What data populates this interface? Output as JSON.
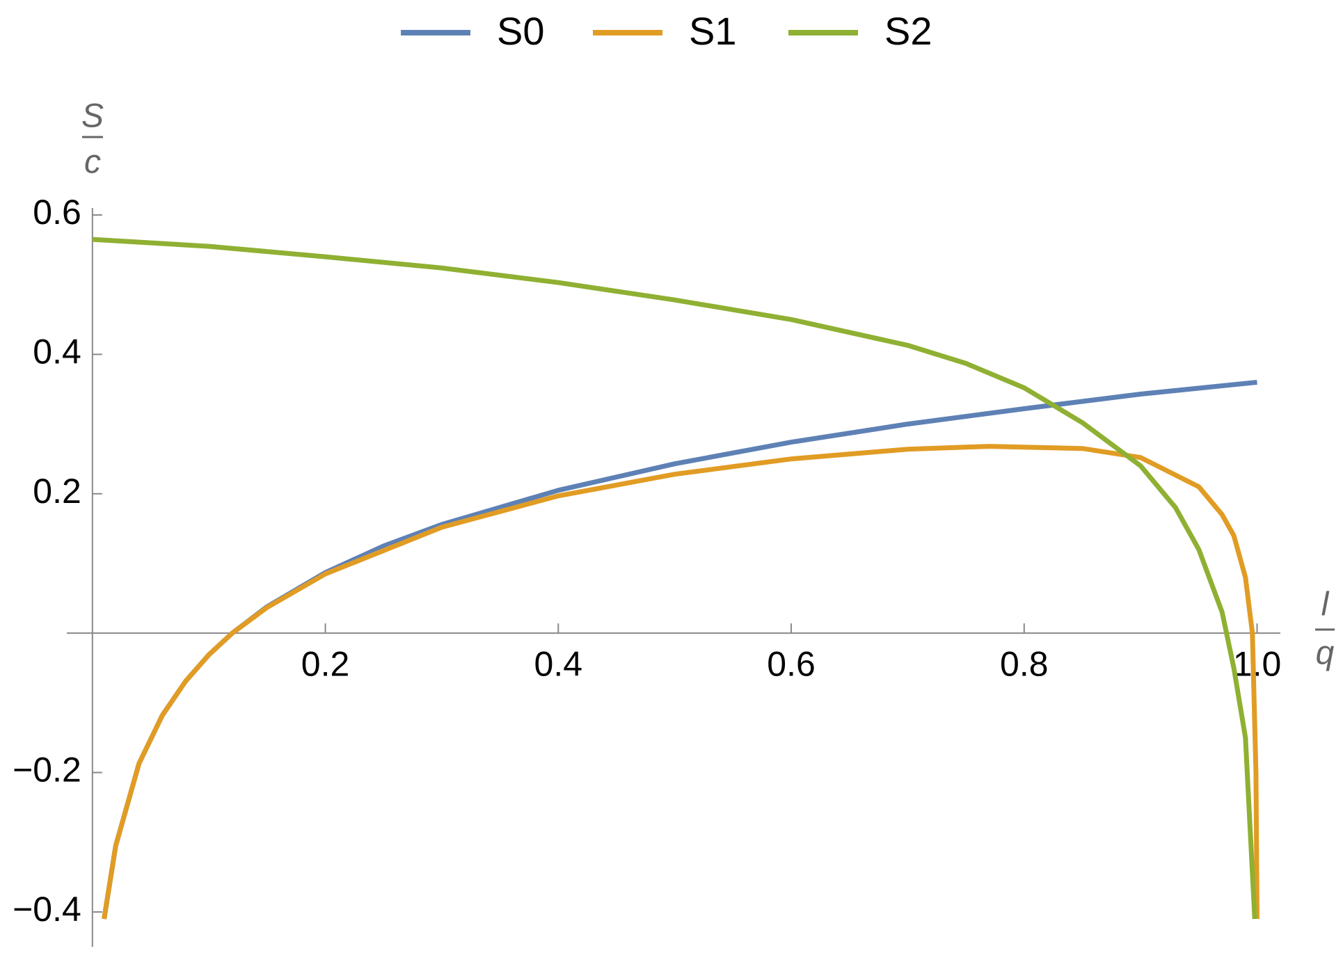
{
  "chart_data": {
    "type": "line",
    "xlabel": {
      "numerator": "l",
      "denominator": "q"
    },
    "ylabel": {
      "numerator": "S",
      "denominator": "c"
    },
    "xlim": [
      -0.022,
      1.02
    ],
    "ylim": [
      -0.45,
      0.61
    ],
    "xticks": [
      0.2,
      0.4,
      0.6,
      0.8,
      {
        "value": 1,
        "label": "1.0"
      }
    ],
    "yticks": [
      {
        "value": -0.4,
        "label": "−0.4"
      },
      {
        "value": -0.2,
        "label": "−0.2"
      },
      0.2,
      0.4,
      0.6
    ],
    "legend": "top",
    "series": [
      {
        "name": "S0",
        "color": "#5e81b5",
        "x": [
          0.01,
          0.02,
          0.04,
          0.06,
          0.08,
          0.1,
          0.12,
          0.15,
          0.2,
          0.25,
          0.3,
          0.4,
          0.5,
          0.6,
          0.7,
          0.8,
          0.9,
          1.0
        ],
        "values": [
          -0.41,
          -0.305,
          -0.187,
          -0.118,
          -0.069,
          -0.031,
          0,
          0.038,
          0.087,
          0.125,
          0.156,
          0.205,
          0.243,
          0.274,
          0.3,
          0.322,
          0.343,
          0.36
        ]
      },
      {
        "name": "S1",
        "color": "#e19c24",
        "x": [
          0.01,
          0.02,
          0.04,
          0.06,
          0.08,
          0.1,
          0.12,
          0.15,
          0.2,
          0.3,
          0.4,
          0.5,
          0.6,
          0.7,
          0.77,
          0.85,
          0.9,
          0.95,
          0.97,
          0.98,
          0.99,
          0.996,
          0.999,
          1.0
        ],
        "values": [
          -0.41,
          -0.305,
          -0.187,
          -0.118,
          -0.069,
          -0.031,
          0,
          0.037,
          0.085,
          0.152,
          0.197,
          0.228,
          0.25,
          0.264,
          0.268,
          0.265,
          0.252,
          0.21,
          0.17,
          0.14,
          0.08,
          0,
          -0.2,
          -0.41
        ]
      },
      {
        "name": "S2",
        "color": "#8fb032",
        "x": [
          0,
          0.1,
          0.2,
          0.3,
          0.4,
          0.5,
          0.6,
          0.7,
          0.75,
          0.8,
          0.85,
          0.9,
          0.93,
          0.95,
          0.97,
          0.98,
          0.99,
          0.998
        ],
        "values": [
          0.565,
          0.555,
          0.54,
          0.524,
          0.503,
          0.478,
          0.45,
          0.413,
          0.387,
          0.352,
          0.302,
          0.24,
          0.18,
          0.12,
          0.03,
          -0.05,
          -0.15,
          -0.41
        ]
      }
    ]
  }
}
